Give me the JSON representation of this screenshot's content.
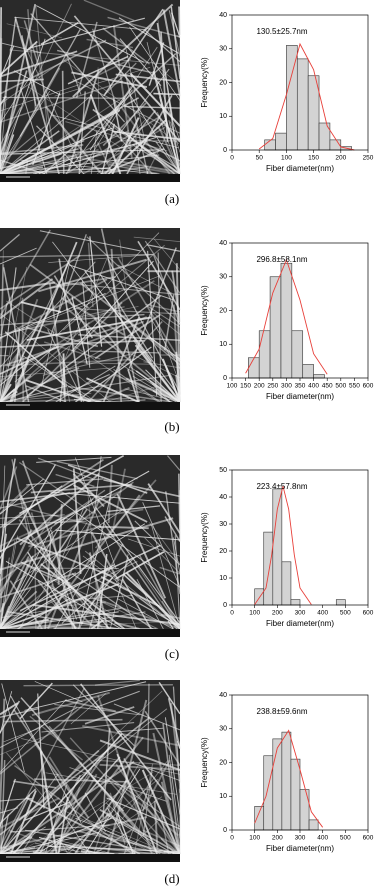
{
  "chart_data": [
    {
      "type": "histogram",
      "caption": "(a)",
      "annotation": "130.5±25.7nm",
      "xlabel": "Fiber diameter(nm)",
      "ylabel": "Frequency(%)",
      "bins": [
        60,
        80,
        100,
        120,
        140,
        160,
        180,
        200,
        220
      ],
      "values": [
        3,
        5,
        31,
        27,
        22,
        8,
        3,
        1
      ],
      "color": "#d3d3d3",
      "fit": {
        "x": [
          50,
          75,
          100,
          125,
          150,
          175,
          200,
          225
        ],
        "values": [
          0.3,
          3.4,
          16.4,
          31.4,
          23.8,
          7.1,
          0.9,
          0
        ],
        "color": "#e8403a"
      },
      "xlim": [
        0,
        250
      ],
      "xticks": [
        0,
        50,
        100,
        150,
        200,
        250
      ],
      "ylim": [
        0,
        40
      ],
      "yticks": [
        0,
        10,
        20,
        30,
        40
      ]
    },
    {
      "type": "histogram",
      "caption": "(b)",
      "annotation": "296.8±58.1nm",
      "xlabel": "Fiber diameter(nm)",
      "ylabel": "Frequency(%)",
      "bins": [
        160,
        200,
        240,
        280,
        320,
        360,
        400,
        440
      ],
      "values": [
        6,
        14,
        30,
        34,
        14,
        4,
        1
      ],
      "color": "#d3d3d3",
      "fit": {
        "x": [
          150,
          200,
          250,
          300,
          350,
          400,
          450
        ],
        "values": [
          1.4,
          8.6,
          25.2,
          35,
          23.1,
          7.2,
          1.1
        ],
        "color": "#e8403a"
      },
      "xlim": [
        100,
        600
      ],
      "xticks": [
        100,
        150,
        200,
        250,
        300,
        350,
        400,
        450,
        500,
        550,
        600
      ],
      "ylim": [
        0,
        40
      ],
      "yticks": [
        0,
        10,
        20,
        30,
        40
      ]
    },
    {
      "type": "histogram",
      "caption": "(c)",
      "annotation": "223.4±57.8nm",
      "xlabel": "Fiber diameter(nm)",
      "ylabel": "Frequency(%)",
      "bins": [
        100,
        140,
        180,
        220,
        260,
        300,
        340,
        380,
        420,
        460,
        500
      ],
      "values": [
        6,
        27,
        43,
        16,
        2,
        0,
        0,
        0,
        0,
        2
      ],
      "color": "#d3d3d3",
      "fit": {
        "x": [
          100,
          150,
          175,
          200,
          225,
          250,
          275,
          300,
          350
        ],
        "values": [
          0.2,
          6.3,
          18.5,
          35.5,
          44,
          35.5,
          18.5,
          6.3,
          0.2
        ],
        "color": "#e8403a"
      },
      "xlim": [
        0,
        600
      ],
      "xticks": [
        0,
        100,
        200,
        300,
        400,
        500,
        600
      ],
      "ylim": [
        0,
        50
      ],
      "yticks": [
        0,
        10,
        20,
        30,
        40,
        50
      ]
    },
    {
      "type": "histogram",
      "caption": "(d)",
      "annotation": "238.8±59.6nm",
      "xlabel": "Fiber diameter(nm)",
      "ylabel": "Frequency(%)",
      "bins": [
        100,
        140,
        180,
        220,
        260,
        300,
        340,
        380
      ],
      "values": [
        7,
        22,
        27,
        29,
        21,
        12,
        3
      ],
      "color": "#d3d3d3",
      "fit": {
        "x": [
          100,
          150,
          200,
          250,
          300,
          350,
          400
        ],
        "values": [
          2,
          10,
          24.3,
          29.5,
          17.9,
          5.4,
          0.8
        ],
        "color": "#e8403a"
      },
      "xlim": [
        0,
        600
      ],
      "xticks": [
        0,
        100,
        200,
        300,
        400,
        500,
        600
      ],
      "ylim": [
        0,
        40
      ],
      "yticks": [
        0,
        10,
        20,
        30,
        40
      ]
    }
  ]
}
